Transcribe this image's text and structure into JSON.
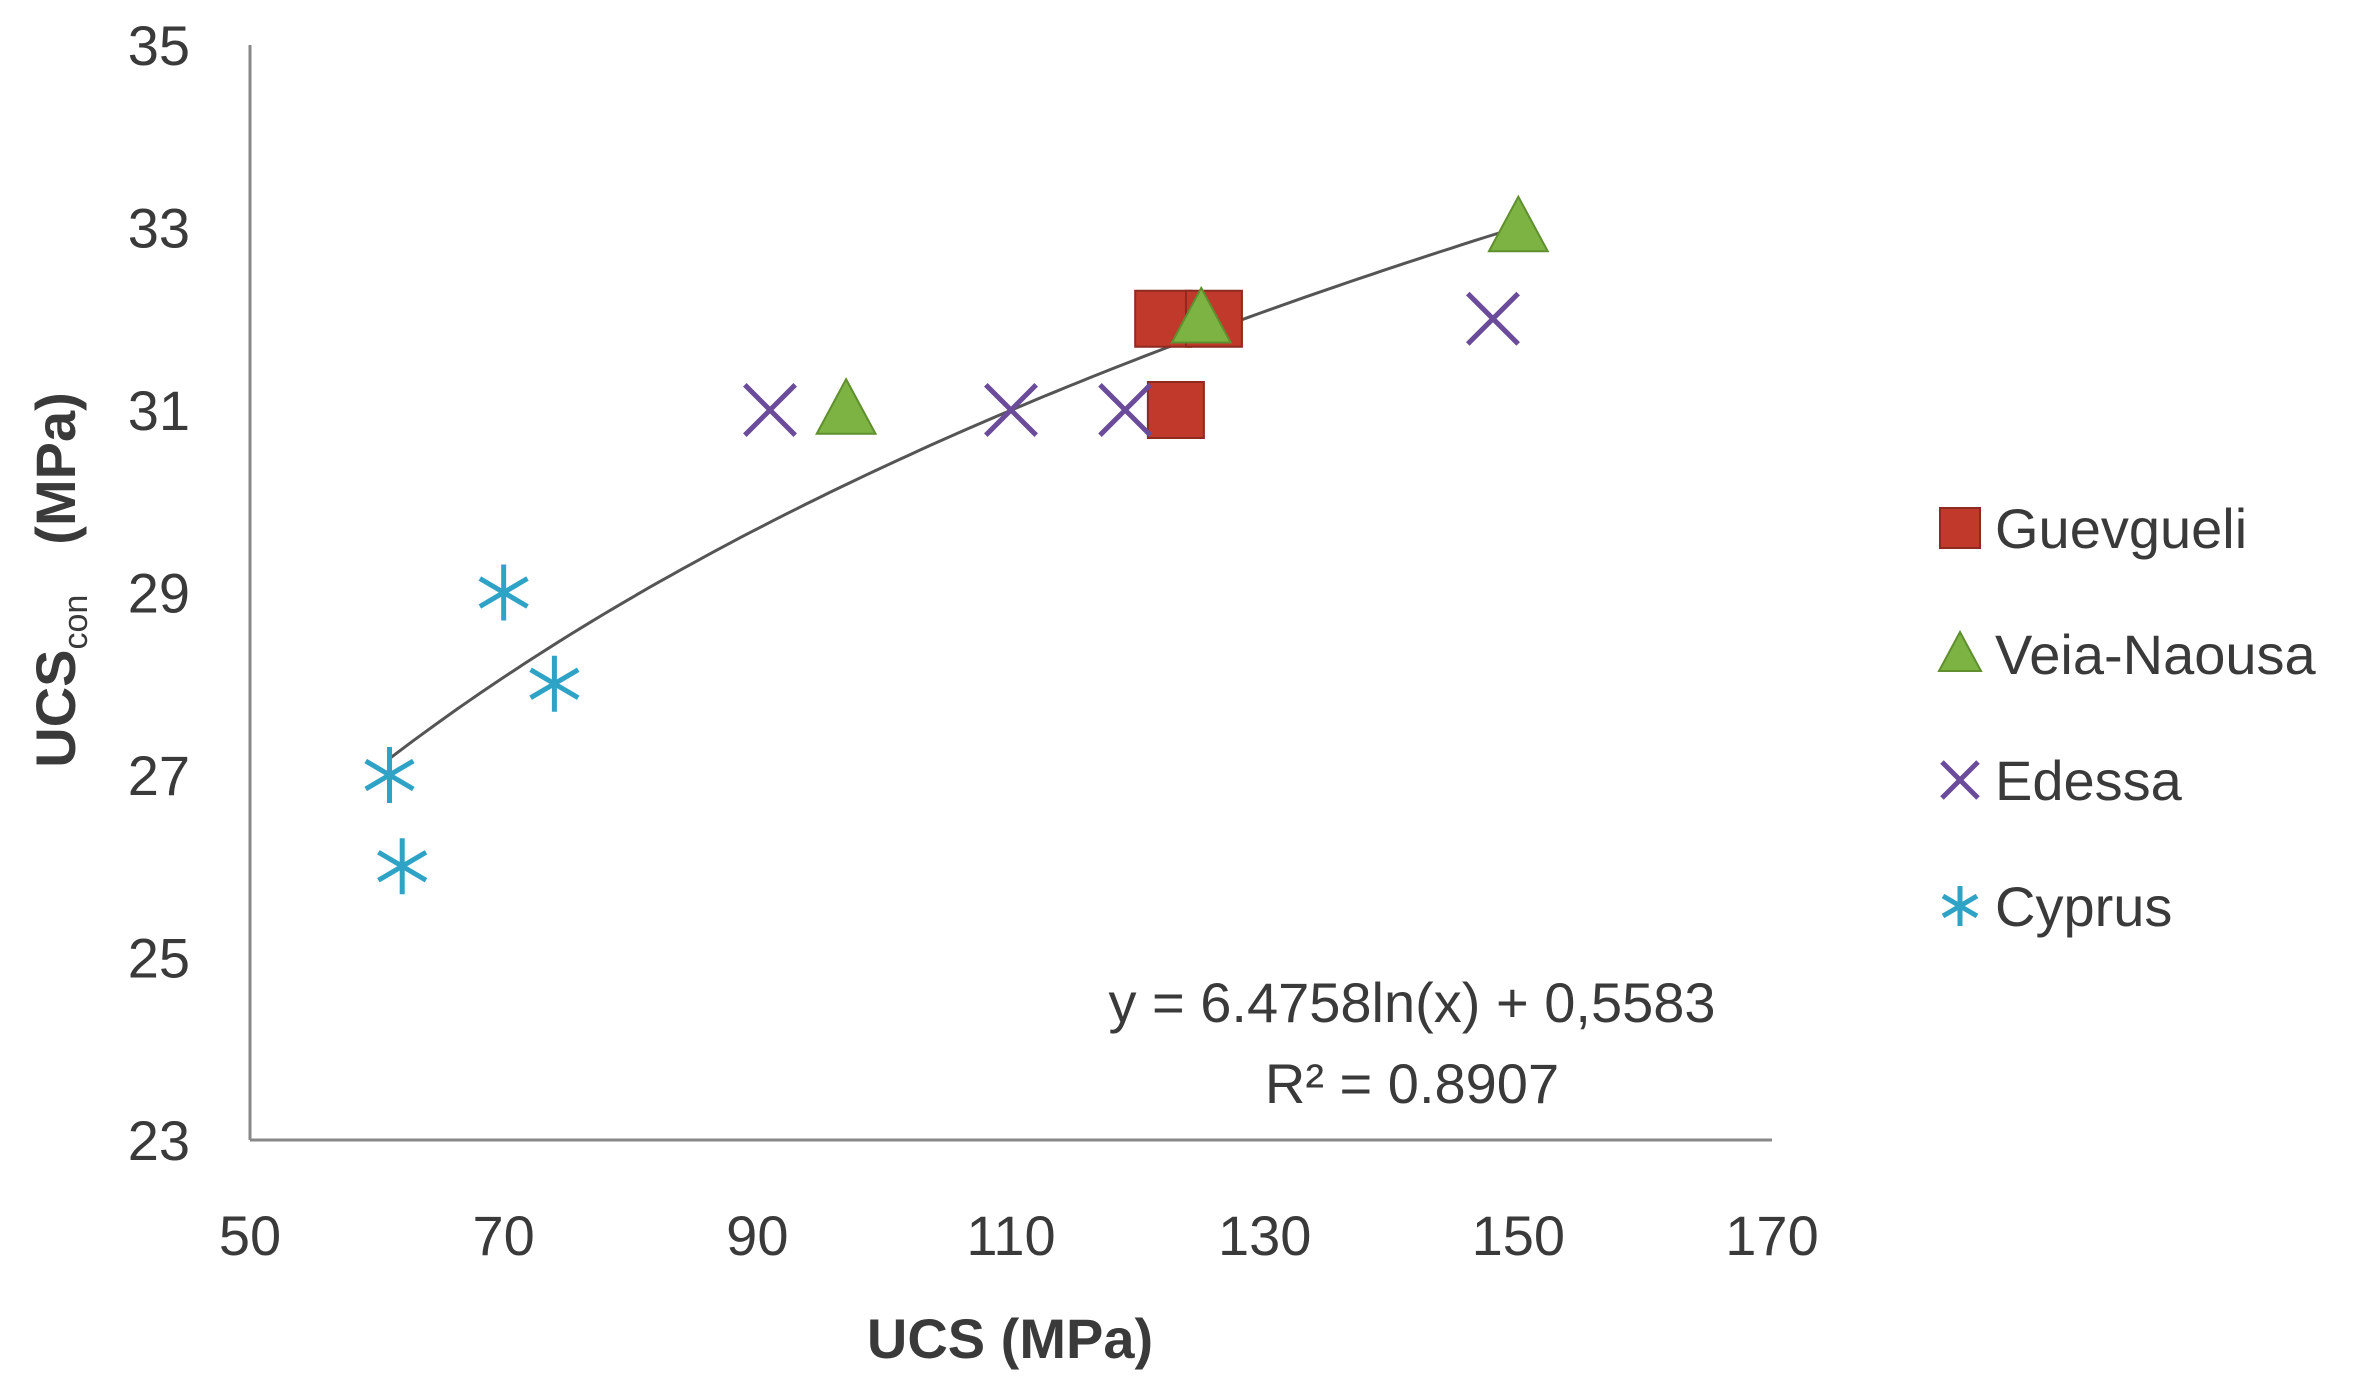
{
  "chart_data": {
    "type": "scatter",
    "title": "",
    "xlabel": "UCS (MPa)",
    "ylabel": {
      "main": "UCS",
      "subscript": "con",
      "unit": "(MPa)"
    },
    "xlim": [
      50,
      170
    ],
    "ylim": [
      23,
      35
    ],
    "xticks": [
      "50",
      "70",
      "90",
      "110",
      "130",
      "150",
      "170"
    ],
    "yticks": [
      "23",
      "25",
      "27",
      "29",
      "31",
      "33",
      "35"
    ],
    "grid": false,
    "legend_position": "right",
    "series": [
      {
        "name": "Guevgueli",
        "marker": "square",
        "color": "#c0392b",
        "points": [
          [
            122,
            32
          ],
          [
            126,
            32
          ],
          [
            123,
            31
          ]
        ]
      },
      {
        "name": "Veia-Naousa",
        "marker": "triangle",
        "color": "#7db342",
        "points": [
          [
            97,
            31
          ],
          [
            125,
            32
          ],
          [
            150,
            33
          ]
        ]
      },
      {
        "name": "Edessa",
        "marker": "x",
        "color": "#6b4c9a",
        "points": [
          [
            91,
            31
          ],
          [
            110,
            31
          ],
          [
            119,
            31
          ],
          [
            148,
            32
          ]
        ]
      },
      {
        "name": "Cyprus",
        "marker": "asterisk",
        "color": "#2ea3c6",
        "points": [
          [
            61,
            27
          ],
          [
            62,
            26
          ],
          [
            70,
            29
          ],
          [
            74,
            28
          ]
        ]
      }
    ],
    "trendline": {
      "type": "logarithmic",
      "a": 6.4758,
      "b": 0.5583,
      "x_range": [
        61,
        150
      ],
      "color": "#555555",
      "equation": "y = 6.4758ln(x) + 0,5583",
      "r2": "R² = 0.8907"
    }
  }
}
